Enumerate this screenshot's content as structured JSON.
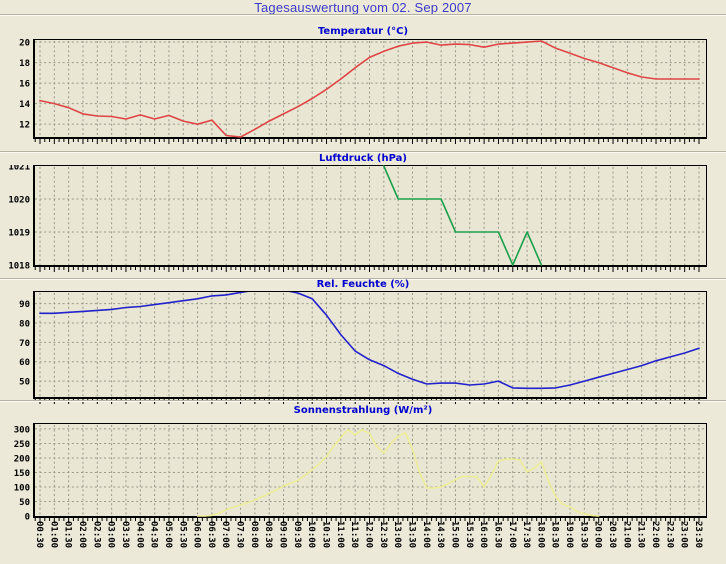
{
  "page": {
    "title": "Tagesauswertung vom 02. Sep 2007"
  },
  "colors": {
    "page_bg": "#ece9d8",
    "plot_bg": "#e9e6d4",
    "grid": "#999889",
    "axis": "#000000",
    "tick_label": "#000000",
    "main_title": "#3a3ac8",
    "chart_title": "#0000d0",
    "separator_dark": "#b4b1a2",
    "separator_light": "#fcfbf3",
    "temperature_line": "#df4545",
    "pressure_line": "#1ca04c",
    "humidity_line": "#2222cc",
    "radiation_line": "#eded96"
  },
  "time_labels": [
    "00:30",
    "01:00",
    "01:30",
    "02:00",
    "02:30",
    "03:00",
    "03:30",
    "04:00",
    "04:30",
    "05:00",
    "05:30",
    "06:00",
    "06:30",
    "07:00",
    "07:30",
    "08:00",
    "08:30",
    "09:00",
    "09:30",
    "10:00",
    "10:30",
    "11:00",
    "11:30",
    "12:00",
    "12:30",
    "13:00",
    "13:30",
    "14:00",
    "14:30",
    "15:00",
    "15:30",
    "16:00",
    "16:30",
    "17:00",
    "17:30",
    "18:00",
    "18:30",
    "19:00",
    "19:30",
    "20:00",
    "20:30",
    "21:00",
    "21:30",
    "22:00",
    "22:30",
    "23:00",
    "23:30"
  ],
  "chart_data": [
    {
      "type": "line",
      "name": "temperature",
      "title": "Temperatur (°C)",
      "line_color": "#df4545",
      "ylim": [
        10.75,
        20.2
      ],
      "yticks": [
        12,
        14,
        16,
        18,
        20
      ],
      "grid": true,
      "interval_min": 30,
      "values": [
        14.3,
        14.0,
        13.6,
        13.0,
        12.8,
        12.75,
        12.5,
        12.9,
        12.5,
        12.85,
        12.3,
        12.0,
        12.4,
        10.9,
        10.75,
        11.5,
        12.3,
        13.0,
        13.7,
        14.5,
        15.4,
        16.4,
        17.5,
        18.5,
        19.1,
        19.6,
        19.9,
        20.0,
        19.7,
        19.8,
        19.75,
        19.5,
        19.8,
        19.9,
        20.0,
        20.1,
        19.4,
        18.9,
        18.4,
        18.0,
        17.5,
        17.0,
        16.6,
        16.4,
        16.4,
        16.4,
        16.4
      ]
    },
    {
      "type": "line",
      "name": "pressure",
      "title": "Luftdruck (hPa)",
      "line_color": "#1ca04c",
      "ylim": [
        1018,
        1021
      ],
      "yticks": [
        1018,
        1019,
        1020,
        1021
      ],
      "grid": true,
      "interval_min": 30,
      "values": [
        null,
        null,
        null,
        null,
        null,
        null,
        null,
        null,
        null,
        null,
        null,
        null,
        null,
        null,
        null,
        null,
        null,
        null,
        null,
        null,
        null,
        null,
        null,
        null,
        1021,
        1020,
        1020,
        1020,
        1020,
        1019,
        1019,
        1019,
        1019,
        1018,
        1019,
        1018,
        null,
        null,
        null,
        null,
        null,
        null,
        null,
        null,
        null,
        null,
        null
      ]
    },
    {
      "type": "line",
      "name": "humidity",
      "title": "Rel. Feuchte (%)",
      "line_color": "#2222cc",
      "ylim": [
        41.8,
        96.0
      ],
      "yticks": [
        50,
        60,
        70,
        80,
        90
      ],
      "grid": true,
      "interval_min": 30,
      "values": [
        85,
        85,
        85.5,
        86,
        86.5,
        87,
        88,
        88.5,
        89.5,
        90.5,
        91.5,
        92.5,
        94,
        94.5,
        95.8,
        97,
        97,
        97,
        95.5,
        92.5,
        84,
        74,
        65.5,
        61,
        58,
        54,
        51,
        48.5,
        49,
        49,
        48,
        48.5,
        50,
        46.5,
        46.3,
        46.3,
        46.5,
        48,
        50,
        52,
        54,
        56,
        58,
        60.5,
        62.5,
        64.5,
        67
      ]
    },
    {
      "type": "line",
      "name": "radiation",
      "title": "Sonnenstrahlung (W/m²)",
      "line_color": "#eded96",
      "ylim": [
        0,
        317
      ],
      "yticks": [
        0,
        50,
        100,
        150,
        200,
        250,
        300
      ],
      "grid": true,
      "interval_min": 15,
      "values": [
        null,
        null,
        null,
        null,
        null,
        null,
        null,
        null,
        null,
        null,
        null,
        null,
        null,
        null,
        null,
        null,
        null,
        null,
        null,
        null,
        null,
        null,
        0,
        0,
        2,
        10,
        22,
        30,
        38,
        46,
        55,
        66,
        78,
        90,
        103,
        113,
        123,
        140,
        160,
        180,
        205,
        240,
        270,
        297,
        280,
        297,
        285,
        240,
        217,
        250,
        275,
        287,
        230,
        150,
        97,
        96,
        100,
        112,
        125,
        137,
        136,
        135,
        100,
        140,
        190,
        196,
        196,
        193,
        152,
        165,
        187,
        120,
        66,
        40,
        31,
        15,
        8,
        2,
        0,
        null,
        null,
        null,
        null,
        null,
        null,
        null,
        null,
        null,
        null,
        null,
        null,
        null,
        null
      ]
    }
  ]
}
